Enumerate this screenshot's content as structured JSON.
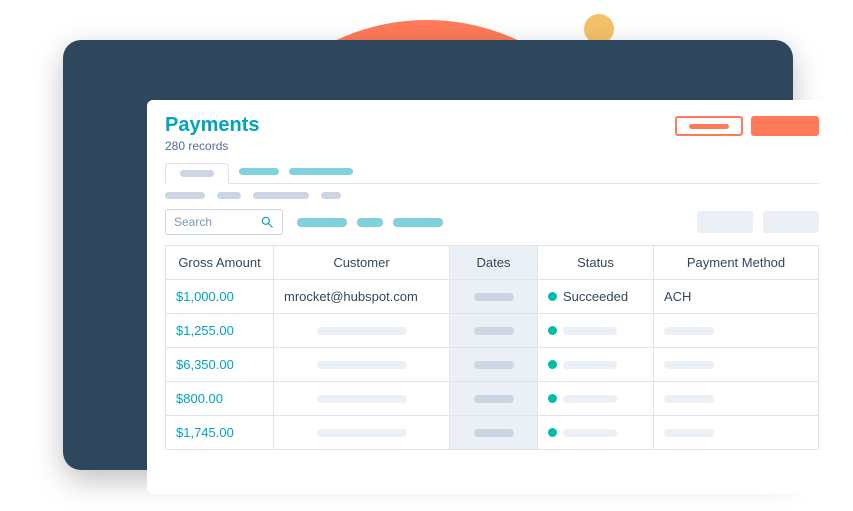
{
  "header": {
    "title": "Payments",
    "records_label": "280 records"
  },
  "search": {
    "placeholder": "Search"
  },
  "columns": {
    "amount": "Gross Amount",
    "customer": "Customer",
    "dates": "Dates",
    "status": "Status",
    "method": "Payment Method"
  },
  "rows": [
    {
      "amount": "$1,000.00",
      "customer": "mrocket@hubspot.com",
      "status": "Succeeded",
      "method": "ACH"
    },
    {
      "amount": "$1,255.00",
      "customer": "",
      "status": "",
      "method": ""
    },
    {
      "amount": "$6,350.00",
      "customer": "",
      "status": "",
      "method": ""
    },
    {
      "amount": "$800.00",
      "customer": "",
      "status": "",
      "method": ""
    },
    {
      "amount": "$1,745.00",
      "customer": "",
      "status": "",
      "method": ""
    }
  ],
  "colors": {
    "accent_orange": "#ff7a59",
    "accent_teal_text": "#00a4bd",
    "accent_teal_chip": "#7fd1de",
    "status_green": "#00bda5",
    "grey_chip": "#cbd6e2",
    "grey_fill": "#eaf0f6",
    "border": "#dfe3eb",
    "text_dark": "#33475b",
    "text_muted": "#516f90",
    "frame_bg": "#2e475d",
    "yellow_dot": "#f5c26b"
  }
}
